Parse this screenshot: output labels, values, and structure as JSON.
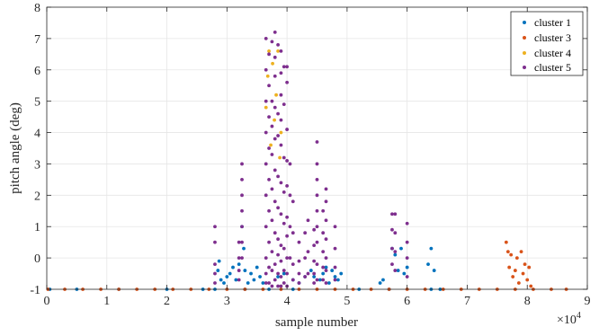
{
  "chart_data": {
    "type": "scatter",
    "title": "",
    "xlabel": "sample number",
    "ylabel": "pitch angle (deg)",
    "x_exponent_label": "×10",
    "x_exponent_power": "4",
    "xlim": [
      0,
      90000
    ],
    "ylim": [
      -1,
      8
    ],
    "grid": true,
    "legend_placement": "top-right",
    "x_ticks": [
      0,
      10000,
      20000,
      30000,
      40000,
      50000,
      60000,
      70000,
      80000,
      90000
    ],
    "x_tick_labels": [
      "0",
      "1",
      "2",
      "3",
      "4",
      "5",
      "6",
      "7",
      "8",
      "9"
    ],
    "y_ticks": [
      -1,
      0,
      1,
      2,
      3,
      4,
      5,
      6,
      7,
      8
    ],
    "y_tick_labels": [
      "-1",
      "0",
      "1",
      "2",
      "3",
      "4",
      "5",
      "6",
      "7",
      "8"
    ],
    "series": [
      {
        "name": "cluster 1",
        "color": "#0072BD",
        "x": [
          28500,
          28700,
          29000,
          29500,
          30000,
          30500,
          31000,
          31500,
          32000,
          32500,
          32800,
          33000,
          33500,
          34000,
          34500,
          35000,
          35500,
          36000,
          38500,
          39500,
          41000,
          42000,
          43000,
          44000,
          44500,
          45500,
          46000,
          46500,
          47000,
          47500,
          48000,
          48500,
          49000,
          55500,
          56000,
          57500,
          58000,
          58500,
          59000,
          59500,
          60000,
          63500,
          64000,
          64500,
          500,
          5000,
          12000,
          20000,
          26000,
          28000,
          33000,
          37000,
          41000,
          52000,
          57000,
          64000,
          65500
        ],
        "y": [
          -0.4,
          -0.1,
          -0.7,
          -0.8,
          -0.6,
          -0.5,
          -0.3,
          -0.7,
          -0.2,
          1.0,
          0.3,
          -0.4,
          -0.8,
          -0.5,
          -0.7,
          -0.3,
          -0.6,
          -0.8,
          -0.6,
          -0.5,
          -0.7,
          -0.8,
          -0.6,
          -0.4,
          -0.6,
          -0.7,
          -0.5,
          -0.3,
          -0.8,
          -0.4,
          -0.6,
          -0.7,
          -0.5,
          -0.8,
          -0.7,
          0.3,
          0.1,
          -0.4,
          0.3,
          -0.5,
          -0.3,
          -0.2,
          0.3,
          -0.4,
          -1.0,
          -1.0,
          -1.0,
          -1.0,
          -1.0,
          -1.0,
          -1.0,
          -1.0,
          -1.0,
          -1.0,
          -1.0,
          -1.0,
          -1.0
        ]
      },
      {
        "name": "cluster 3",
        "color": "#D95319",
        "x": [
          200,
          3000,
          6000,
          9000,
          12000,
          15000,
          18000,
          21000,
          24000,
          27000,
          30000,
          33000,
          36000,
          39000,
          42000,
          45000,
          48000,
          51000,
          54000,
          57000,
          60000,
          63000,
          66000,
          69000,
          72000,
          75000,
          78000,
          81000,
          84000,
          86500,
          76500,
          76800,
          77000,
          77300,
          77600,
          78000,
          78300,
          78600,
          79000,
          79300,
          79600,
          80000,
          80300,
          80600
        ],
        "y": [
          -1.0,
          -1.0,
          -1.0,
          -1.0,
          -1.0,
          -1.0,
          -1.0,
          -1.0,
          -1.0,
          -1.0,
          -1.0,
          -1.0,
          -1.0,
          -1.0,
          -1.0,
          -1.0,
          -1.0,
          -1.0,
          -1.0,
          -1.0,
          -1.0,
          -1.0,
          -1.0,
          -1.0,
          -1.0,
          -1.0,
          -1.0,
          -1.0,
          -1.0,
          -1.0,
          0.5,
          0.2,
          -0.3,
          0.1,
          -0.6,
          -0.4,
          0.0,
          -0.8,
          0.2,
          -0.5,
          -0.2,
          -0.7,
          -0.3,
          -0.9
        ]
      },
      {
        "name": "cluster 4",
        "color": "#EDB120",
        "x": [
          36500,
          36800,
          37000,
          37300,
          37600,
          37900,
          38200,
          38500,
          38800,
          39000
        ],
        "y": [
          4.8,
          5.8,
          6.6,
          3.6,
          6.2,
          4.4,
          5.2,
          6.6,
          3.2,
          4.0
        ]
      },
      {
        "name": "cluster 5",
        "color": "#7E2F8E",
        "x": [
          28000,
          28000,
          28000,
          28000,
          28000,
          32000,
          32000,
          32000,
          32000,
          32500,
          32500,
          32500,
          32500,
          32500,
          32500,
          32500,
          36500,
          36500,
          36500,
          36500,
          36500,
          36500,
          36500,
          36500,
          36500,
          36500,
          37000,
          37000,
          37000,
          37000,
          37000,
          37000,
          37000,
          37000,
          37000,
          37500,
          37500,
          37500,
          37500,
          37500,
          37500,
          37500,
          37500,
          37500,
          38000,
          38000,
          38000,
          38000,
          38000,
          38000,
          38000,
          38000,
          38000,
          38000,
          38500,
          38500,
          38500,
          38500,
          38500,
          38500,
          38500,
          38500,
          38500,
          39000,
          39000,
          39000,
          39000,
          39000,
          39000,
          39000,
          39000,
          39000,
          39000,
          39000,
          39500,
          39500,
          39500,
          39500,
          39500,
          39500,
          39500,
          39500,
          40000,
          40000,
          40000,
          40000,
          40000,
          40000,
          40000,
          40000,
          40000,
          40000,
          40500,
          40500,
          40500,
          40500,
          41000,
          41000,
          41000,
          41000,
          42000,
          42000,
          42000,
          42000,
          43000,
          43000,
          43000,
          43500,
          43500,
          43500,
          44500,
          44500,
          44500,
          44500,
          44500,
          45000,
          45000,
          45000,
          45000,
          45000,
          45000,
          45000,
          45000,
          45000,
          46000,
          46000,
          46000,
          46000,
          46000,
          46500,
          46500,
          46500,
          46500,
          46500,
          46500,
          46500,
          48000,
          48000,
          48000,
          48000,
          57500,
          57500,
          57500,
          57500,
          58000,
          58000,
          58000,
          58000,
          60000,
          60000,
          60000,
          60000
        ],
        "y": [
          1.0,
          0.5,
          -0.2,
          -0.5,
          -0.8,
          0.5,
          0.0,
          -0.4,
          -0.7,
          3.0,
          2.5,
          2.0,
          1.5,
          1.0,
          0.5,
          0.0,
          7.0,
          6.0,
          5.0,
          4.0,
          3.0,
          2.0,
          1.0,
          0.0,
          -0.5,
          -0.8,
          6.5,
          5.5,
          4.5,
          3.5,
          2.5,
          1.5,
          0.5,
          -0.3,
          -0.8,
          6.9,
          5.0,
          4.2,
          3.3,
          2.2,
          1.2,
          0.2,
          -0.4,
          -0.9,
          7.2,
          6.4,
          5.8,
          4.8,
          3.8,
          2.8,
          1.8,
          0.8,
          -0.2,
          -0.7,
          6.8,
          4.6,
          3.9,
          2.6,
          1.6,
          0.6,
          0.1,
          -0.5,
          -0.9,
          6.6,
          5.9,
          5.2,
          4.4,
          3.6,
          2.4,
          1.4,
          0.4,
          -0.1,
          -0.6,
          -0.9,
          6.1,
          4.9,
          3.2,
          2.1,
          1.1,
          0.3,
          -0.4,
          -0.8,
          6.1,
          5.6,
          4.1,
          3.1,
          2.3,
          1.3,
          0.7,
          0.0,
          -0.5,
          -0.9,
          3.0,
          2.0,
          1.0,
          0.0,
          1.8,
          0.8,
          -0.2,
          -0.7,
          0.5,
          -0.1,
          -0.5,
          -0.8,
          0.8,
          0.0,
          -0.6,
          1.2,
          0.2,
          -0.5,
          0.9,
          0.4,
          -0.1,
          -0.5,
          -0.8,
          3.7,
          3.0,
          2.5,
          2.0,
          1.5,
          1.0,
          0.5,
          -0.2,
          -0.7,
          1.5,
          0.8,
          0.2,
          -0.3,
          -0.7,
          2.2,
          1.8,
          1.2,
          0.6,
          0.0,
          -0.4,
          -0.8,
          1.0,
          0.3,
          -0.3,
          -0.7,
          1.4,
          0.9,
          0.3,
          -0.2,
          1.4,
          0.8,
          0.2,
          -0.4,
          1.1,
          0.5,
          0.0,
          -0.6
        ]
      }
    ]
  }
}
